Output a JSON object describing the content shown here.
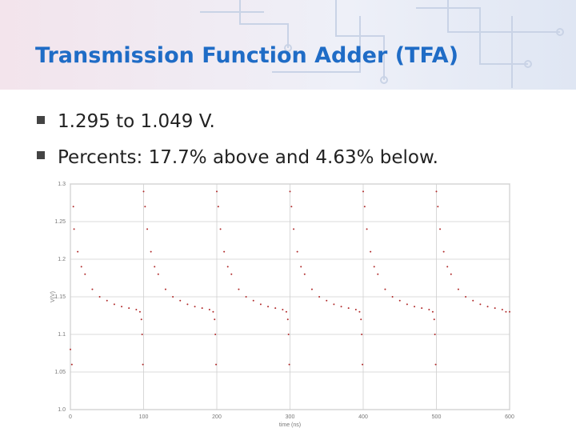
{
  "header": {
    "title": "Transmission Function Adder (TFA)"
  },
  "bullets": [
    "1.295 to 1.049 V.",
    "Percents: 17.7% above and 4.63% below."
  ],
  "chart_data": {
    "type": "scatter",
    "x_label": "time (ns)",
    "y_label": "V(V)",
    "color": "#b02a2a",
    "grid": true,
    "xlim": [
      0,
      600
    ],
    "xticks": [
      0,
      100,
      200,
      300,
      400,
      500,
      600
    ],
    "ylim": [
      1.0,
      1.3
    ],
    "yticks": [
      {
        "value": 1.0,
        "label": "1.0"
      },
      1.05,
      1.1,
      1.15,
      1.2,
      1.25,
      1.3
    ],
    "series": [
      {
        "name": "V",
        "color": "#b02a2a",
        "x": [
          0,
          2,
          4,
          5,
          10,
          15,
          20,
          30,
          40,
          50,
          60,
          70,
          80,
          90,
          95,
          97,
          98,
          99,
          100,
          102,
          105,
          110,
          115,
          120,
          130,
          140,
          150,
          160,
          170,
          180,
          190,
          195,
          197,
          198,
          199,
          200,
          202,
          205,
          210,
          215,
          220,
          230,
          240,
          250,
          260,
          270,
          280,
          290,
          295,
          297,
          298,
          299,
          300,
          302,
          305,
          310,
          315,
          320,
          330,
          340,
          350,
          360,
          370,
          380,
          390,
          395,
          397,
          398,
          399,
          400,
          402,
          405,
          410,
          415,
          420,
          430,
          440,
          450,
          460,
          470,
          480,
          490,
          495,
          497,
          498,
          499,
          500,
          502,
          505,
          510,
          515,
          520,
          530,
          540,
          550,
          560,
          570,
          580,
          590,
          595,
          600
        ],
        "values": [
          1.08,
          1.06,
          1.27,
          1.24,
          1.21,
          1.19,
          1.18,
          1.16,
          1.15,
          1.145,
          1.14,
          1.137,
          1.135,
          1.133,
          1.13,
          1.12,
          1.1,
          1.06,
          1.29,
          1.27,
          1.24,
          1.21,
          1.19,
          1.18,
          1.16,
          1.15,
          1.145,
          1.14,
          1.137,
          1.135,
          1.133,
          1.13,
          1.12,
          1.1,
          1.06,
          1.29,
          1.27,
          1.24,
          1.21,
          1.19,
          1.18,
          1.16,
          1.15,
          1.145,
          1.14,
          1.137,
          1.135,
          1.133,
          1.13,
          1.12,
          1.1,
          1.06,
          1.29,
          1.27,
          1.24,
          1.21,
          1.19,
          1.18,
          1.16,
          1.15,
          1.145,
          1.14,
          1.137,
          1.135,
          1.133,
          1.13,
          1.12,
          1.1,
          1.06,
          1.29,
          1.27,
          1.24,
          1.21,
          1.19,
          1.18,
          1.16,
          1.15,
          1.145,
          1.14,
          1.137,
          1.135,
          1.133,
          1.13,
          1.12,
          1.1,
          1.06,
          1.29,
          1.27,
          1.24,
          1.21,
          1.19,
          1.18,
          1.16,
          1.15,
          1.145,
          1.14,
          1.137,
          1.135,
          1.133,
          1.13,
          1.13
        ]
      }
    ]
  }
}
